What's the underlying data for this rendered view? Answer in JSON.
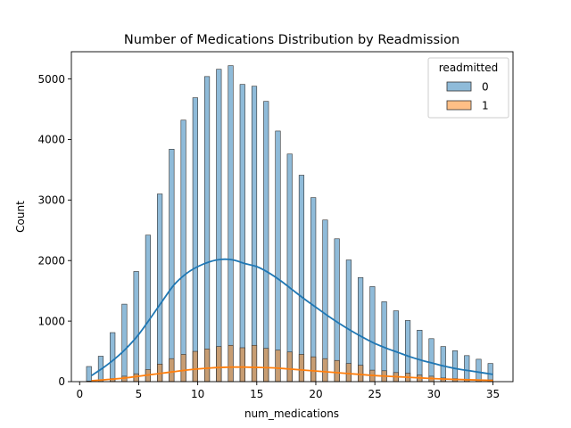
{
  "chart_data": {
    "type": "bar",
    "title": "Number of Medications Distribution by Readmission",
    "xlabel": "num_medications",
    "ylabel": "Count",
    "xlim": [
      -0.7,
      36.7
    ],
    "ylim": [
      0,
      5450
    ],
    "xticks": [
      0,
      5,
      10,
      15,
      20,
      25,
      30,
      35
    ],
    "yticks": [
      0,
      1000,
      2000,
      3000,
      4000,
      5000
    ],
    "grid": false,
    "legend": {
      "title": "readmitted",
      "placement": "top-right"
    },
    "x": [
      1,
      2,
      3,
      4,
      5,
      6,
      7,
      8,
      9,
      10,
      11,
      12,
      13,
      14,
      15,
      16,
      17,
      18,
      19,
      20,
      21,
      22,
      23,
      24,
      25,
      26,
      27,
      28,
      29,
      30,
      31,
      32,
      33,
      34,
      35
    ],
    "series": [
      {
        "name": "0",
        "color": "#1f77b4",
        "values": [
          250,
          420,
          810,
          1280,
          1820,
          2420,
          3100,
          3840,
          4320,
          4690,
          5040,
          5160,
          5220,
          4910,
          4880,
          4630,
          4140,
          3760,
          3410,
          3040,
          2670,
          2360,
          2010,
          1720,
          1570,
          1320,
          1170,
          1010,
          850,
          710,
          580,
          510,
          430,
          370,
          300
        ],
        "kde": [
          [
            1,
            100
          ],
          [
            2,
            230
          ],
          [
            3,
            380
          ],
          [
            4,
            560
          ],
          [
            5,
            780
          ],
          [
            6,
            1050
          ],
          [
            7,
            1330
          ],
          [
            8,
            1600
          ],
          [
            9,
            1780
          ],
          [
            10,
            1900
          ],
          [
            11,
            1980
          ],
          [
            12,
            2020
          ],
          [
            13,
            2010
          ],
          [
            14,
            1950
          ],
          [
            15,
            1900
          ],
          [
            16,
            1800
          ],
          [
            17,
            1670
          ],
          [
            18,
            1520
          ],
          [
            19,
            1370
          ],
          [
            20,
            1230
          ],
          [
            21,
            1090
          ],
          [
            22,
            960
          ],
          [
            23,
            840
          ],
          [
            24,
            730
          ],
          [
            25,
            630
          ],
          [
            26,
            550
          ],
          [
            27,
            480
          ],
          [
            28,
            410
          ],
          [
            29,
            350
          ],
          [
            30,
            300
          ],
          [
            31,
            250
          ],
          [
            32,
            210
          ],
          [
            33,
            180
          ],
          [
            34,
            150
          ],
          [
            35,
            120
          ]
        ]
      },
      {
        "name": "1",
        "color": "#ff7f0e",
        "values": [
          10,
          20,
          50,
          90,
          130,
          200,
          290,
          380,
          450,
          500,
          540,
          580,
          600,
          560,
          600,
          550,
          520,
          490,
          450,
          410,
          380,
          350,
          300,
          270,
          190,
          180,
          150,
          140,
          110,
          90,
          60,
          50,
          40,
          30,
          30
        ],
        "kde": [
          [
            1,
            15
          ],
          [
            2,
            30
          ],
          [
            3,
            45
          ],
          [
            4,
            65
          ],
          [
            5,
            90
          ],
          [
            6,
            115
          ],
          [
            7,
            140
          ],
          [
            8,
            165
          ],
          [
            9,
            190
          ],
          [
            10,
            210
          ],
          [
            11,
            225
          ],
          [
            12,
            235
          ],
          [
            13,
            240
          ],
          [
            14,
            240
          ],
          [
            15,
            235
          ],
          [
            16,
            230
          ],
          [
            17,
            220
          ],
          [
            18,
            205
          ],
          [
            19,
            190
          ],
          [
            20,
            175
          ],
          [
            21,
            160
          ],
          [
            22,
            145
          ],
          [
            23,
            130
          ],
          [
            24,
            115
          ],
          [
            25,
            100
          ],
          [
            26,
            90
          ],
          [
            27,
            80
          ],
          [
            28,
            70
          ],
          [
            29,
            60
          ],
          [
            30,
            50
          ],
          [
            31,
            42
          ],
          [
            32,
            36
          ],
          [
            33,
            30
          ],
          [
            34,
            25
          ],
          [
            35,
            20
          ]
        ]
      }
    ]
  }
}
